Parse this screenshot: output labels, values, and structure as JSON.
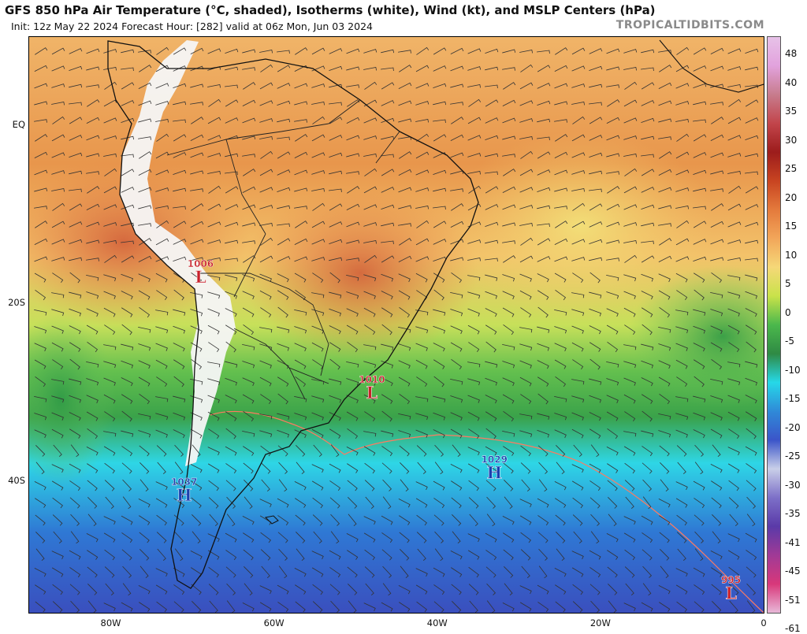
{
  "header": {
    "title": "GFS 850 hPa Air Temperature (°C, shaded), Isotherms (white), Wind (kt), and MSLP Centers (hPa)",
    "init_line": "Init: 12z May 22 2024   Forecast Hour: [282]   valid at 06z Mon, Jun 03 2024",
    "site": "TROPICALTIDBITS.COM"
  },
  "map": {
    "lat_labels": [
      {
        "label": "EQ",
        "lat": 0
      },
      {
        "label": "20S",
        "lat": -20
      },
      {
        "label": "40S",
        "lat": -40
      }
    ],
    "lon_labels": [
      {
        "label": "80W",
        "lon": -80
      },
      {
        "label": "60W",
        "lon": -60
      },
      {
        "label": "40W",
        "lon": -40
      },
      {
        "label": "20W",
        "lon": -20
      },
      {
        "label": "0",
        "lon": 0
      }
    ],
    "pressure_centers": [
      {
        "value": "1006",
        "type": "L",
        "lon": -69,
        "lat": -17
      },
      {
        "value": "1010",
        "type": "L",
        "lon": -48,
        "lat": -30
      },
      {
        "value": "1029",
        "type": "H",
        "lon": -33,
        "lat": -39
      },
      {
        "value": "1037",
        "type": "H",
        "lon": -71,
        "lat": -41.5
      },
      {
        "value": "995",
        "type": "L",
        "lon": -4,
        "lat": -52.5
      }
    ],
    "colors": {
      "low": "#c8202a",
      "high": "#1b3fae"
    }
  },
  "colorbar": {
    "labels": [
      "48",
      "40",
      "35",
      "30",
      "25",
      "20",
      "15",
      "10",
      "5",
      "0",
      "-5",
      "-10",
      "-15",
      "-20",
      "-25",
      "-30",
      "-35",
      "-41",
      "-45",
      "-51",
      "-61"
    ],
    "stops": [
      "#e7c2e8",
      "#e2a2dd",
      "#c77c8d",
      "#c2454b",
      "#9c1c1c",
      "#c84421",
      "#e47a3c",
      "#f2a65a",
      "#f5d878",
      "#c9e24a",
      "#4bb84c",
      "#2f8a44",
      "#26d8e8",
      "#2f8ad8",
      "#3b55c9",
      "#c9cfe8",
      "#7d70c8",
      "#5a3aa8",
      "#a03a96",
      "#d8387a",
      "#e8b8d8"
    ]
  }
}
